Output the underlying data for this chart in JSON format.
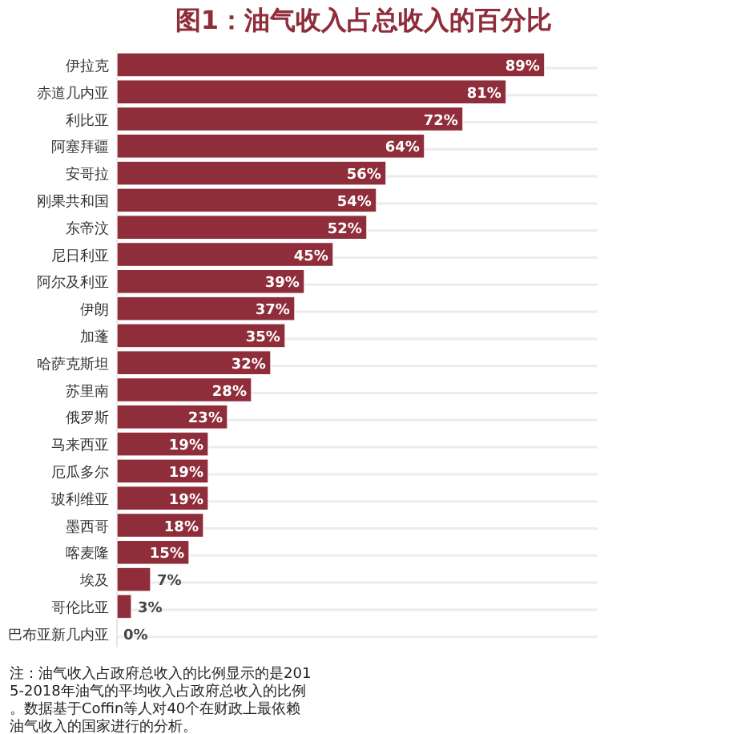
{
  "chart_data": {
    "type": "bar",
    "orientation": "horizontal",
    "title": "图1：油气收入占总收入的百分比",
    "categories": [
      "伊拉克",
      "赤道几内亚",
      "利比亚",
      "阿塞拜疆",
      "安哥拉",
      "刚果共和国",
      "东帝汶",
      "尼日利亚",
      "阿尔及利亚",
      "伊朗",
      "加蓬",
      "哈萨克斯坦",
      "苏里南",
      "俄罗斯",
      "马来西亚",
      "厄瓜多尔",
      "玻利维亚",
      "墨西哥",
      "喀麦隆",
      "埃及",
      "哥伦比亚",
      "巴布亚新几内亚"
    ],
    "values": [
      89,
      81,
      72,
      64,
      56,
      54,
      52,
      45,
      39,
      37,
      35,
      32,
      28,
      23,
      19,
      19,
      19,
      18,
      15,
      7,
      3,
      0
    ],
    "value_labels": [
      "89%",
      "81%",
      "72%",
      "64%",
      "56%",
      "54%",
      "52%",
      "45%",
      "39%",
      "37%",
      "35%",
      "32%",
      "28%",
      "23%",
      "19%",
      "19%",
      "19%",
      "18%",
      "15%",
      "7%",
      "3%",
      "0%"
    ],
    "color": "#8f2d3a",
    "grid": "y",
    "annotations": [
      "注：油气收入占政府总收入的比例显示的是2015-2018年油气的平均收入占政府总收入的比例。数据基于Coffin等人对40个在财政上最依赖油气收入的国家进行的分析。"
    ]
  }
}
